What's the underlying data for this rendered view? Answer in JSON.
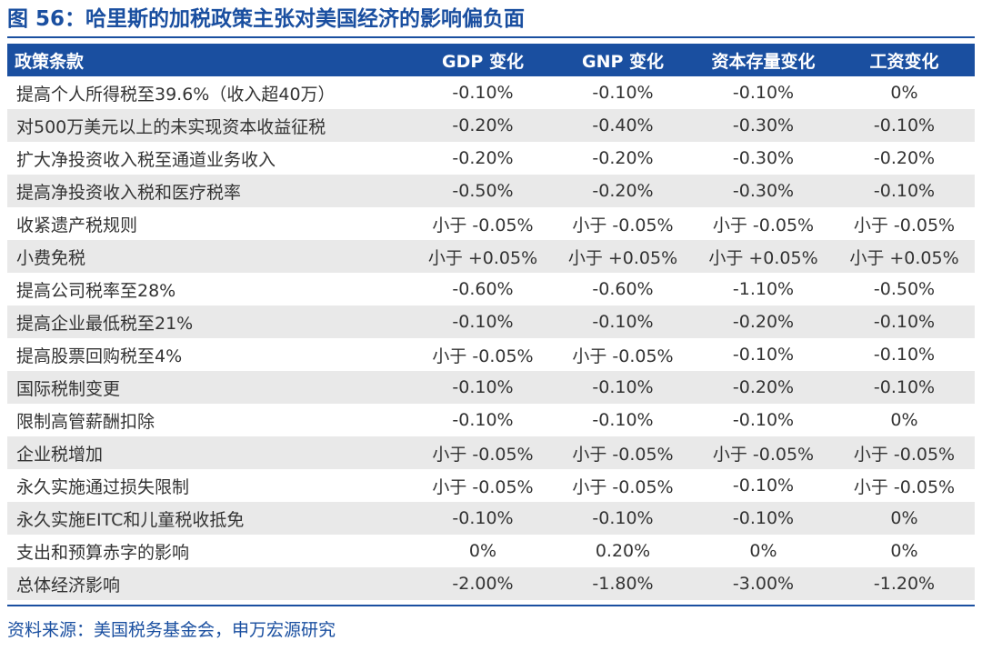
{
  "title": "图 56：哈里斯的加税政策主张对美国经济的影响偏负面",
  "table": {
    "headers": [
      "政策条款",
      "GDP 变化",
      "GNP 变化",
      "资本存量变化",
      "工资变化"
    ],
    "rows": [
      [
        "提高个人所得税至39.6%（收入超40万）",
        "-0.10%",
        "-0.10%",
        "-0.10%",
        "0%"
      ],
      [
        "对500万美元以上的未实现资本收益征税",
        "-0.20%",
        "-0.40%",
        "-0.30%",
        "-0.10%"
      ],
      [
        "扩大净投资收入税至通道业务收入",
        "-0.20%",
        "-0.20%",
        "-0.30%",
        "-0.20%"
      ],
      [
        "提高净投资收入税和医疗税率",
        "-0.50%",
        "-0.20%",
        "-0.30%",
        "-0.10%"
      ],
      [
        "收紧遗产税规则",
        "小于 -0.05%",
        "小于 -0.05%",
        "小于 -0.05%",
        "小于 -0.05%"
      ],
      [
        "小费免税",
        "小于 +0.05%",
        "小于 +0.05%",
        "小于 +0.05%",
        "小于 +0.05%"
      ],
      [
        "提高公司税率至28%",
        "-0.60%",
        "-0.60%",
        "-1.10%",
        "-0.50%"
      ],
      [
        "提高企业最低税至21%",
        "-0.10%",
        "-0.10%",
        "-0.20%",
        "-0.10%"
      ],
      [
        "提高股票回购税至4%",
        "小于 -0.05%",
        "小于 -0.05%",
        "-0.10%",
        "-0.10%"
      ],
      [
        "国际税制变更",
        "-0.10%",
        "-0.10%",
        "-0.20%",
        "-0.10%"
      ],
      [
        "限制高管薪酬扣除",
        "-0.10%",
        "-0.10%",
        "-0.10%",
        "0%"
      ],
      [
        "企业税增加",
        "小于 -0.05%",
        "小于 -0.05%",
        "小于 -0.05%",
        "小于 -0.05%"
      ],
      [
        "永久实施通过损失限制",
        "小于 -0.05%",
        "小于 -0.05%",
        "-0.10%",
        "小于 -0.05%"
      ],
      [
        "永久实施EITC和儿童税收抵免",
        "-0.10%",
        "-0.10%",
        "-0.10%",
        "0%"
      ],
      [
        "支出和预算赤字的影响",
        "0%",
        "0.20%",
        "0%",
        "0%"
      ],
      [
        "总体经济影响",
        "-2.00%",
        "-1.80%",
        "-3.00%",
        "-1.20%"
      ]
    ]
  },
  "source": "资料来源：美国税务基金会，申万宏源研究",
  "colors": {
    "accent": "#1a4fa0",
    "stripe": "#e9e9e9",
    "text": "#333333"
  }
}
